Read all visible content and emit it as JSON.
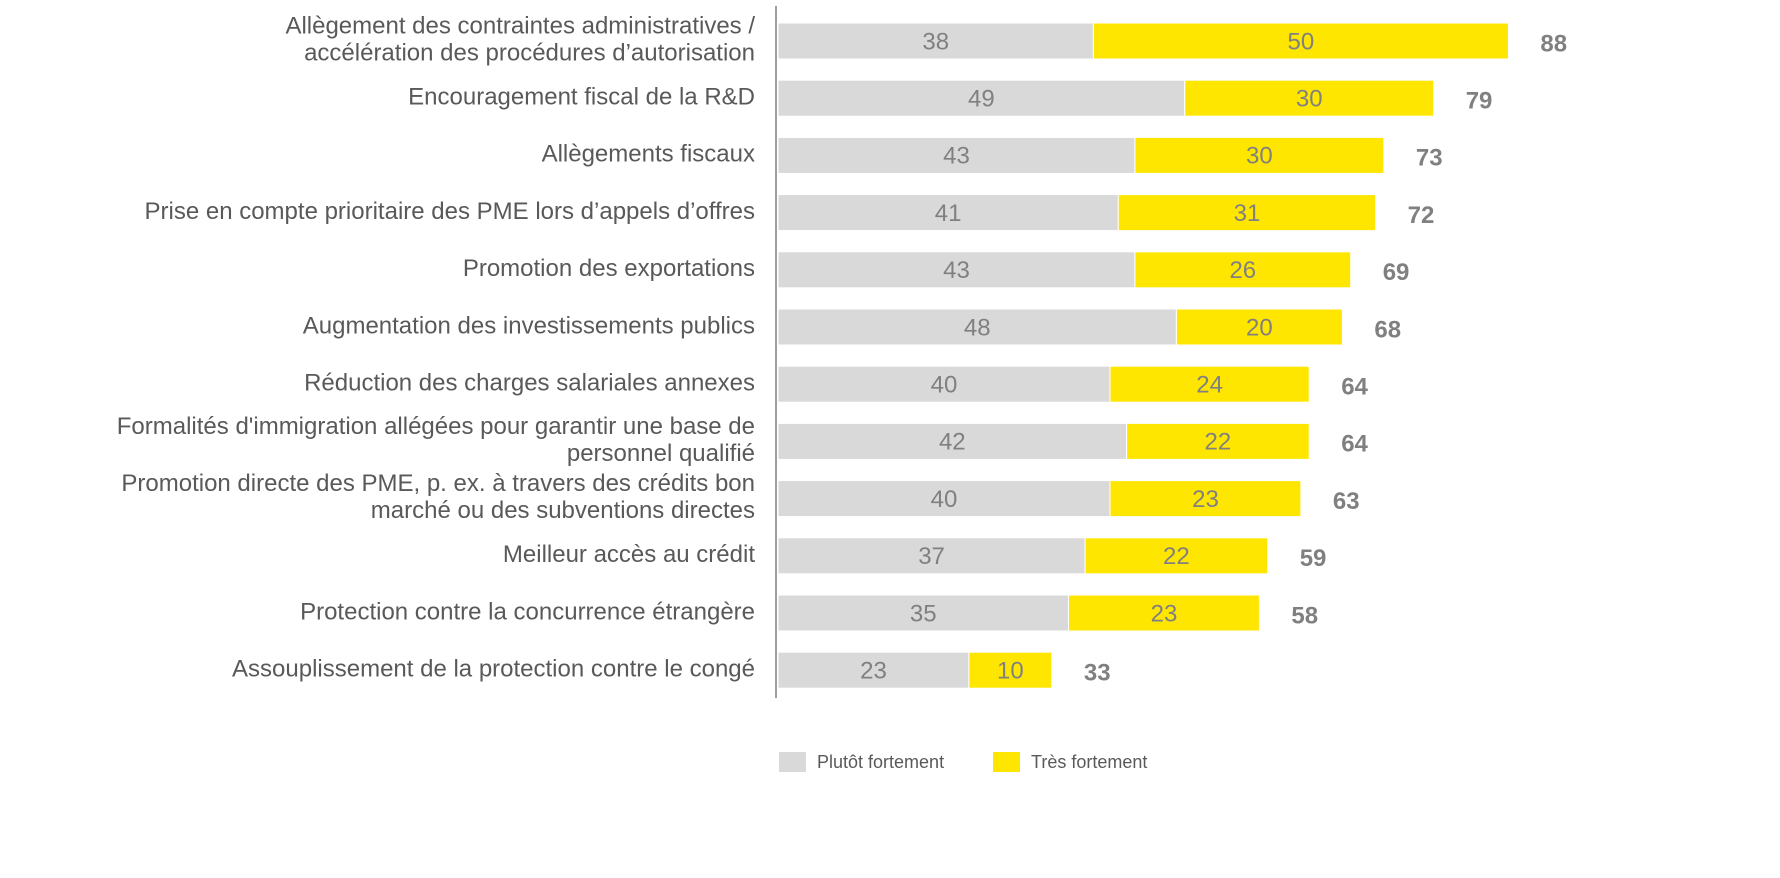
{
  "chart_data": {
    "type": "stacked-bar-horizontal",
    "categories": [
      "Allègement des contraintes administratives /\naccélération des procédures d’autorisation",
      "Encouragement fiscal de la R&D",
      "Allègements fiscaux",
      "Prise en compte prioritaire des PME lors d’appels d’offres",
      "Promotion des exportations",
      "Augmentation des investissements publics",
      "Réduction des charges salariales annexes",
      "Formalités d'immigration allégées pour garantir une base de\npersonnel qualifié",
      "Promotion directe des PME, p. ex. à travers des crédits bon\nmarché ou des subventions directes",
      "Meilleur accès au crédit",
      "Protection contre la concurrence étrangère",
      "Assouplissement de la protection contre le congé"
    ],
    "series": [
      {
        "name": "Plutôt fortement",
        "color": "#d9d9d9",
        "values": [
          38,
          49,
          43,
          41,
          43,
          48,
          40,
          42,
          40,
          37,
          35,
          23
        ]
      },
      {
        "name": "Très fortement",
        "color": "#ffe600",
        "values": [
          50,
          30,
          30,
          31,
          26,
          20,
          24,
          22,
          23,
          22,
          23,
          10
        ]
      }
    ],
    "totals": [
      88,
      79,
      73,
      72,
      69,
      68,
      64,
      64,
      63,
      59,
      58,
      33
    ],
    "legend": "bottom"
  }
}
